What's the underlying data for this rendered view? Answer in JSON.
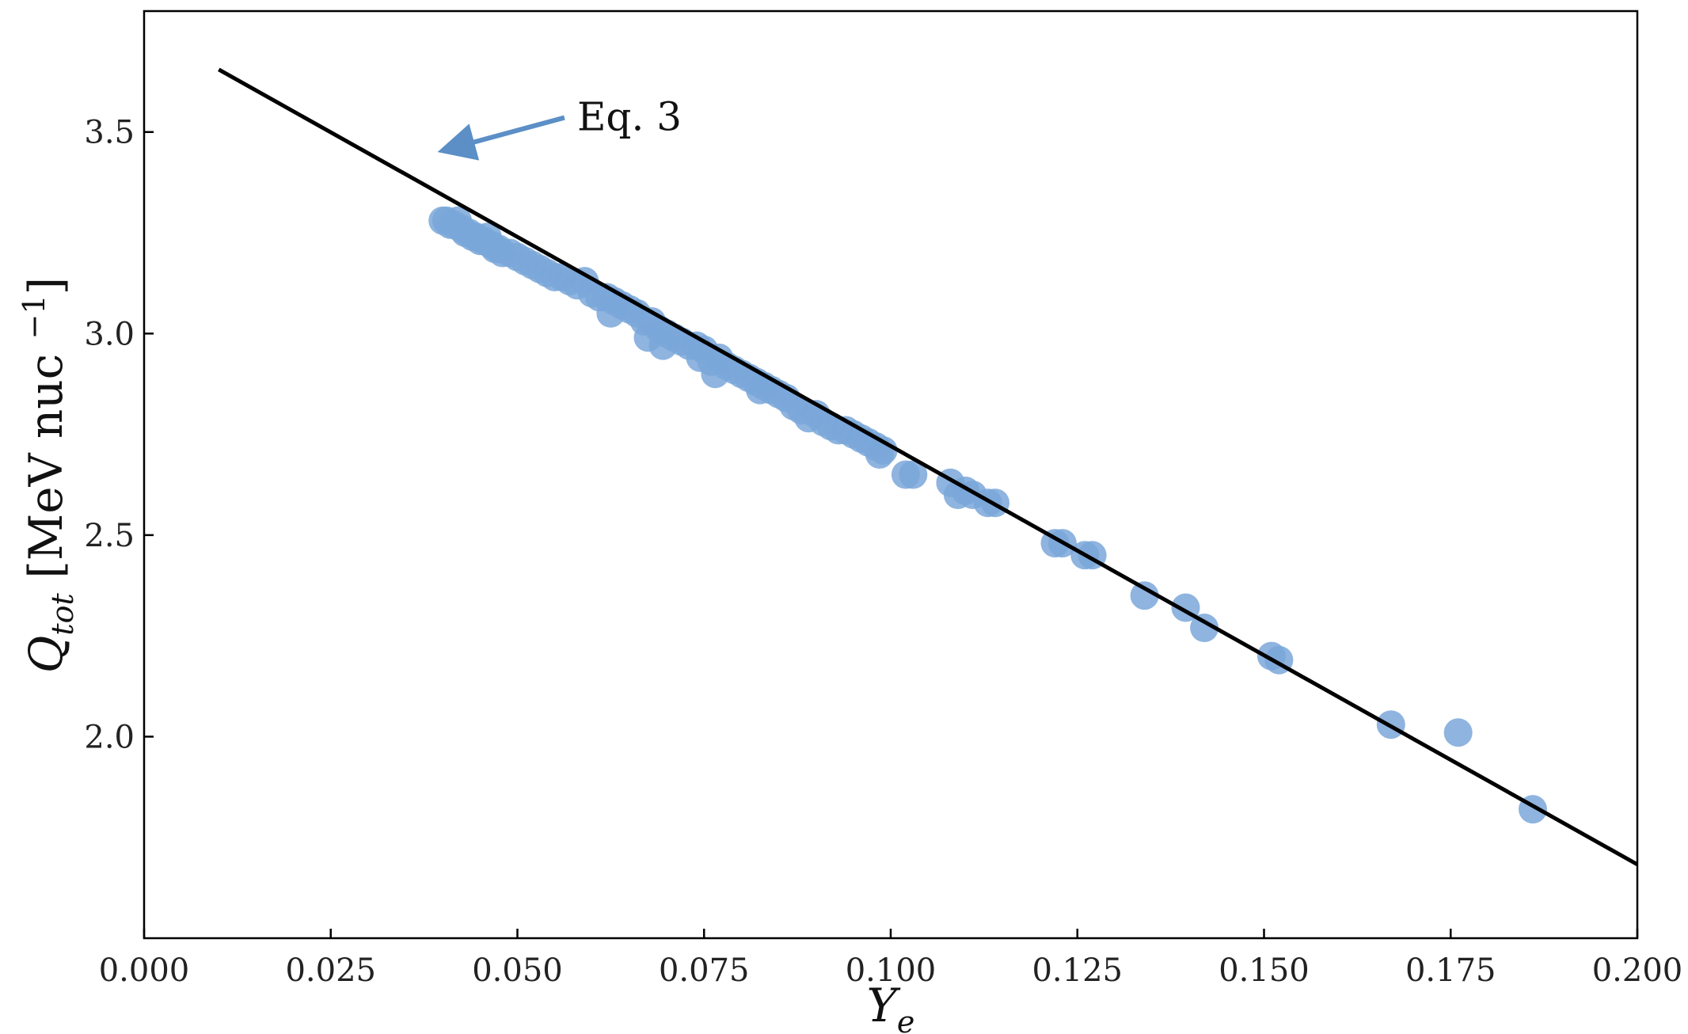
{
  "chart_data": {
    "type": "scatter",
    "xlabel": "Y",
    "xlabel_sub": "e",
    "ylabel": "Q",
    "ylabel_sub": "tot",
    "ylabel_unit": " [MeV nuc ",
    "ylabel_sup": "−1",
    "ylabel_close": "]",
    "xlim": [
      0.0,
      0.2
    ],
    "ylim": [
      1.5,
      3.8
    ],
    "x_ticks": [
      0.0,
      0.025,
      0.05,
      0.075,
      0.1,
      0.125,
      0.15,
      0.175,
      0.2
    ],
    "x_tick_labels": [
      "0.000",
      "0.025",
      "0.050",
      "0.075",
      "0.100",
      "0.125",
      "0.150",
      "0.175",
      "0.200"
    ],
    "y_ticks": [
      2.0,
      2.5,
      3.0,
      3.5
    ],
    "y_tick_labels": [
      "2.0",
      "2.5",
      "3.0",
      "3.5"
    ],
    "grid": false,
    "colors": {
      "points": "#7aa7d9",
      "line": "#000000",
      "arrow": "#5b8fc6"
    },
    "series": [
      {
        "kind": "scatter",
        "x": [
          0.04,
          0.0405,
          0.041,
          0.0415,
          0.042,
          0.0425,
          0.043,
          0.0435,
          0.044,
          0.0445,
          0.045,
          0.0455,
          0.046,
          0.0465,
          0.047,
          0.0475,
          0.048,
          0.049,
          0.05,
          0.051,
          0.052,
          0.053,
          0.054,
          0.055,
          0.056,
          0.057,
          0.058,
          0.059,
          0.06,
          0.061,
          0.062,
          0.063,
          0.0625,
          0.064,
          0.065,
          0.066,
          0.067,
          0.0675,
          0.068,
          0.069,
          0.0695,
          0.07,
          0.071,
          0.072,
          0.073,
          0.074,
          0.0745,
          0.075,
          0.076,
          0.0765,
          0.077,
          0.078,
          0.079,
          0.08,
          0.081,
          0.082,
          0.0825,
          0.083,
          0.084,
          0.085,
          0.086,
          0.087,
          0.088,
          0.089,
          0.09,
          0.091,
          0.092,
          0.093,
          0.094,
          0.095,
          0.096,
          0.097,
          0.098,
          0.0985,
          0.099,
          0.102,
          0.103,
          0.108,
          0.109,
          0.11,
          0.111,
          0.113,
          0.114,
          0.122,
          0.123,
          0.126,
          0.127,
          0.134,
          0.1395,
          0.142,
          0.151,
          0.152,
          0.167,
          0.176,
          0.186
        ],
        "y": [
          3.28,
          3.28,
          3.27,
          3.27,
          3.28,
          3.26,
          3.25,
          3.25,
          3.24,
          3.24,
          3.23,
          3.23,
          3.24,
          3.22,
          3.21,
          3.21,
          3.2,
          3.2,
          3.19,
          3.18,
          3.17,
          3.16,
          3.15,
          3.14,
          3.14,
          3.13,
          3.12,
          3.13,
          3.1,
          3.09,
          3.09,
          3.08,
          3.05,
          3.07,
          3.06,
          3.05,
          3.03,
          2.99,
          3.03,
          3.01,
          2.97,
          3.0,
          2.99,
          2.98,
          2.97,
          2.97,
          2.94,
          2.96,
          2.93,
          2.9,
          2.94,
          2.92,
          2.91,
          2.9,
          2.89,
          2.88,
          2.86,
          2.87,
          2.86,
          2.85,
          2.84,
          2.82,
          2.81,
          2.79,
          2.8,
          2.78,
          2.77,
          2.76,
          2.76,
          2.75,
          2.74,
          2.73,
          2.72,
          2.7,
          2.71,
          2.65,
          2.65,
          2.63,
          2.6,
          2.61,
          2.6,
          2.58,
          2.58,
          2.48,
          2.48,
          2.45,
          2.45,
          2.35,
          2.32,
          2.27,
          2.2,
          2.19,
          2.03,
          2.01,
          1.82
        ]
      },
      {
        "kind": "line",
        "label": "Eq. 3",
        "x": [
          0.01,
          0.2
        ],
        "y": [
          3.655,
          1.683
        ]
      }
    ],
    "annotations": [
      {
        "text": "Eq. 3",
        "xy": [
          0.0415,
          3.465
        ],
        "text_xy": [
          0.058,
          3.52
        ]
      }
    ]
  }
}
